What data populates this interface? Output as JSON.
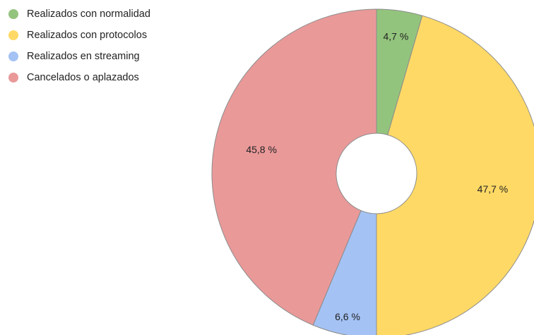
{
  "chart_data": {
    "type": "pie",
    "variant": "donut",
    "title": "",
    "legend_position": "top-left",
    "start_angle_deg": 0,
    "direction": "clockwise",
    "series": [
      {
        "name": "Realizados con normalidad",
        "value": 4.7,
        "label": "4,7 %",
        "color": "#93c47d"
      },
      {
        "name": "Realizados con protocolos",
        "value": 47.7,
        "label": "47,7 %",
        "color": "#ffd966"
      },
      {
        "name": "Realizados en streaming",
        "value": 6.6,
        "label": "6,6 %",
        "color": "#a4c2f4"
      },
      {
        "name": "Cancelados o aplazados",
        "value": 45.8,
        "label": "45,8 %",
        "color": "#ea9999"
      }
    ]
  }
}
